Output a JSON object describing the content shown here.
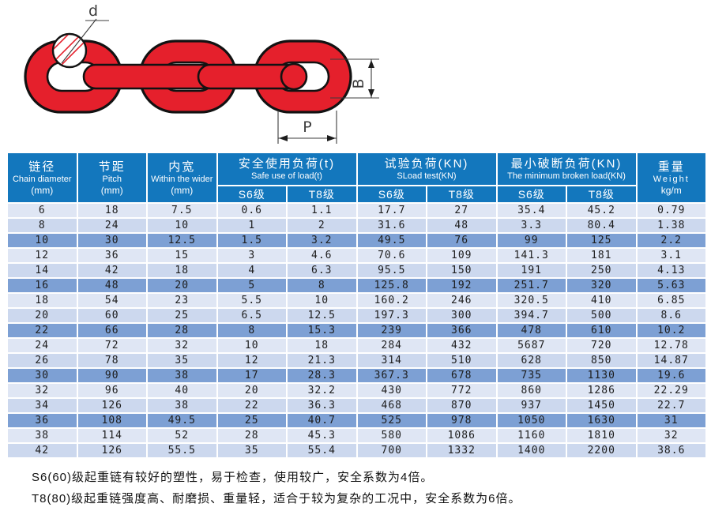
{
  "illustration": {
    "labels": {
      "diameter": "d",
      "width": "B",
      "pitch": "P"
    },
    "chain_color": "#e5202c",
    "outline_color": "#121212"
  },
  "table": {
    "header": {
      "chain_diameter": {
        "zh": "链径",
        "en": "Chain diameter",
        "unit": "(mm)"
      },
      "pitch": {
        "zh": "节距",
        "en": "Pitch",
        "unit": "(mm)"
      },
      "inner_width": {
        "zh": "内宽",
        "en": "Within the wider",
        "unit": "(mm)"
      },
      "safe_load": {
        "zh": "安全使用负荷(t)",
        "en": "Safe use of load(t)"
      },
      "test_load": {
        "zh": "试验负荷(KN)",
        "en": "SLoad test(KN)"
      },
      "min_break_load": {
        "zh": "最小破断负荷(KN)",
        "en": "The minimum broken load(KN)"
      },
      "weight": {
        "zh": "重量",
        "en": "Weight",
        "unit": "kg/m"
      },
      "grade_s6": "S6级",
      "grade_t8": "T8级"
    },
    "rows": [
      [
        "6",
        "18",
        "7.5",
        "0.6",
        "1.1",
        "17.7",
        "27",
        "35.4",
        "45.2",
        "0.79"
      ],
      [
        "8",
        "24",
        "10",
        "1",
        "2",
        "31.6",
        "48",
        "3.3",
        "80.4",
        "1.38"
      ],
      [
        "10",
        "30",
        "12.5",
        "1.5",
        "3.2",
        "49.5",
        "76",
        "99",
        "125",
        "2.2"
      ],
      [
        "12",
        "36",
        "15",
        "3",
        "4.6",
        "70.6",
        "109",
        "141.3",
        "181",
        "3.1"
      ],
      [
        "14",
        "42",
        "18",
        "4",
        "6.3",
        "95.5",
        "150",
        "191",
        "250",
        "4.13"
      ],
      [
        "16",
        "48",
        "20",
        "5",
        "8",
        "125.8",
        "192",
        "251.7",
        "320",
        "5.63"
      ],
      [
        "18",
        "54",
        "23",
        "5.5",
        "10",
        "160.2",
        "246",
        "320.5",
        "410",
        "6.85"
      ],
      [
        "20",
        "60",
        "25",
        "6.5",
        "12.5",
        "197.3",
        "300",
        "394.7",
        "500",
        "8.6"
      ],
      [
        "22",
        "66",
        "28",
        "8",
        "15.3",
        "239",
        "366",
        "478",
        "610",
        "10.2"
      ],
      [
        "24",
        "72",
        "32",
        "10",
        "18",
        "284",
        "432",
        "5687",
        "720",
        "12.78"
      ],
      [
        "26",
        "78",
        "35",
        "12",
        "21.3",
        "314",
        "510",
        "628",
        "850",
        "14.87"
      ],
      [
        "30",
        "90",
        "38",
        "17",
        "28.3",
        "367.3",
        "678",
        "735",
        "1130",
        "19.6"
      ],
      [
        "32",
        "96",
        "40",
        "20",
        "32.2",
        "430",
        "772",
        "860",
        "1286",
        "22.29"
      ],
      [
        "34",
        "126",
        "38",
        "22",
        "36.3",
        "468",
        "870",
        "937",
        "1450",
        "22.7"
      ],
      [
        "36",
        "108",
        "49.5",
        "25",
        "40.7",
        "525",
        "978",
        "1050",
        "1630",
        "31"
      ],
      [
        "38",
        "114",
        "52",
        "28",
        "45.3",
        "580",
        "1086",
        "1160",
        "1810",
        "32"
      ],
      [
        "42",
        "126",
        "55.5",
        "35",
        "55.4",
        "700",
        "1332",
        "1400",
        "2200",
        "38.6"
      ]
    ],
    "colors": {
      "header_bg": "#1377bd",
      "header_text": "#ffffff",
      "row_light": "#dfe6f4",
      "row_mid": "#ccd8ee",
      "row_dark": "#7da0d4"
    }
  },
  "notes": [
    "S6(60)级起重链有较好的塑性，易于检查，使用较广，安全系数为4倍。",
    "T8(80)级起重链强度高、耐磨损、重量轻，适合于较为复杂的工况中，安全系数为6倍。"
  ]
}
